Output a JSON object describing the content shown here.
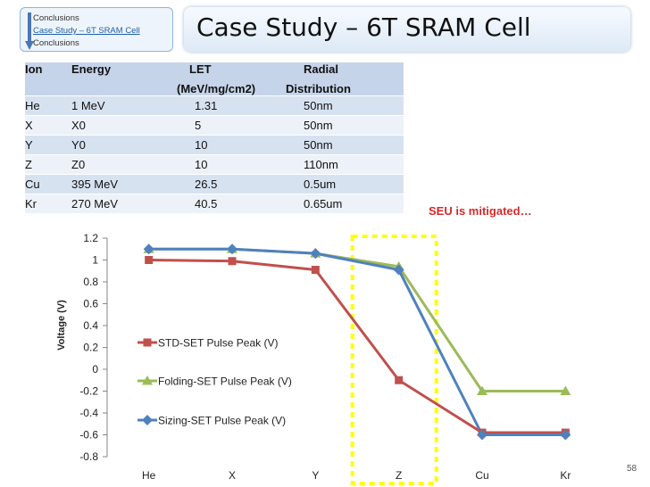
{
  "navigation": {
    "items": [
      {
        "label": "Conclusions",
        "active": false
      },
      {
        "label": "Case Study – 6T SRAM Cell",
        "active": true
      },
      {
        "label": "Conclusions",
        "active": false
      }
    ]
  },
  "title": "Case Study – 6T SRAM Cell",
  "ion_table": {
    "header": {
      "ion": "Ion",
      "energy": "Energy",
      "let_line1": "LET",
      "let_line2": "(MeV/mg/cm2)",
      "radial_line1": "Radial",
      "radial_line2": "Distribution"
    },
    "rows": [
      {
        "ion": "He",
        "energy": "1 MeV",
        "let": "1.31",
        "radial": "50nm"
      },
      {
        "ion": "X",
        "energy": "X0",
        "let": "5",
        "radial": "50nm"
      },
      {
        "ion": "Y",
        "energy": "Y0",
        "let": "10",
        "radial": "50nm"
      },
      {
        "ion": "Z",
        "energy": "Z0",
        "let": "10",
        "radial": "110nm"
      },
      {
        "ion": "Cu",
        "energy": "395 MeV",
        "let": "26.5",
        "radial": "0.5um"
      },
      {
        "ion": "Kr",
        "energy": "270 MeV",
        "let": "40.5",
        "radial": "0.65um"
      }
    ]
  },
  "annotation": "SEU is mitigated…",
  "chart_data": {
    "type": "line",
    "title": "",
    "categories": [
      "He",
      "X",
      "Y",
      "Z",
      "Cu",
      "Kr"
    ],
    "xlabel": "",
    "ylabel": "Voltage (V)",
    "ylim": [
      -0.8,
      1.2
    ],
    "yticks": [
      1.2,
      1,
      0.8,
      0.6,
      0.4,
      0.2,
      0,
      -0.2,
      -0.4,
      -0.6,
      -0.8
    ],
    "legend_position": "inside-left",
    "highlight_category": "Z",
    "series": [
      {
        "name": "STD-SET Pulse Peak (V)",
        "marker": "square",
        "color": "#c0504d",
        "values": [
          1.0,
          0.99,
          0.91,
          -0.1,
          -0.58,
          -0.58
        ]
      },
      {
        "name": "Folding-SET Pulse Peak (V)",
        "marker": "triangle",
        "color": "#9bbb59",
        "values": [
          1.1,
          1.1,
          1.06,
          0.94,
          -0.2,
          -0.2
        ]
      },
      {
        "name": "Sizing-SET Pulse Peak (V)",
        "marker": "diamond",
        "color": "#4f81bd",
        "values": [
          1.1,
          1.1,
          1.06,
          0.91,
          -0.6,
          -0.6
        ]
      }
    ]
  },
  "page_number": "58"
}
